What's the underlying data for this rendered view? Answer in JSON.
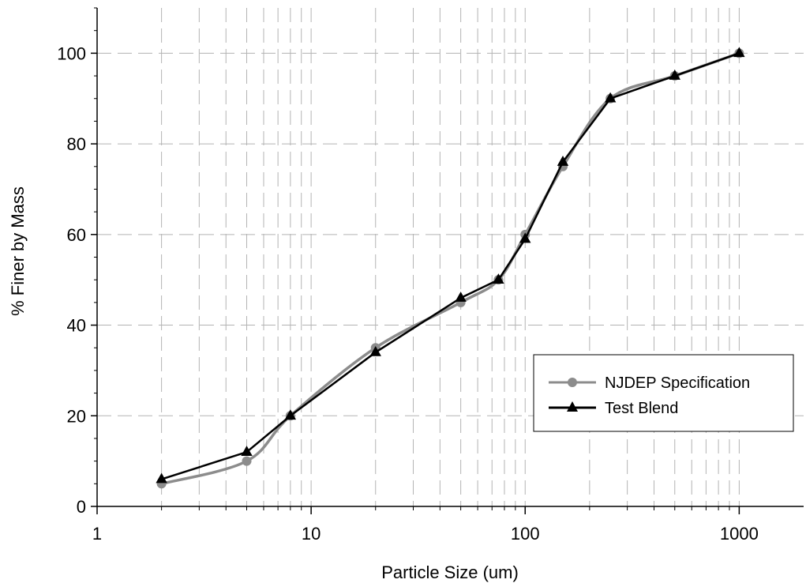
{
  "chart_data": {
    "type": "line",
    "xlabel": "Particle Size (um)",
    "ylabel": "% Finer by Mass",
    "xscale": "log",
    "xlim": [
      1,
      2000
    ],
    "ylim": [
      0,
      110
    ],
    "xticks": [
      1,
      10,
      100,
      1000
    ],
    "xtick_labels": [
      "1",
      "10",
      "100",
      "1000"
    ],
    "yticks": [
      0,
      20,
      40,
      60,
      80,
      100
    ],
    "ytick_labels": [
      "0",
      "20",
      "40",
      "60",
      "80",
      "100"
    ],
    "grid": true,
    "grid_style": "dashed",
    "legend_position": "lower-right",
    "series": [
      {
        "name": "NJDEP Specification",
        "color": "#8c8c8c",
        "marker": "circle",
        "smooth": true,
        "x": [
          2,
          5,
          8,
          20,
          50,
          75,
          100,
          150,
          250,
          500,
          1000
        ],
        "y": [
          5,
          10,
          20,
          35,
          45,
          50,
          60,
          75,
          90,
          95,
          100
        ]
      },
      {
        "name": "Test Blend",
        "color": "#000000",
        "marker": "triangle",
        "smooth": false,
        "x": [
          2,
          5,
          8,
          20,
          50,
          75,
          100,
          150,
          250,
          500,
          1000
        ],
        "y": [
          6,
          12,
          20,
          34,
          46,
          50,
          59,
          76,
          90,
          95,
          100
        ]
      }
    ]
  }
}
